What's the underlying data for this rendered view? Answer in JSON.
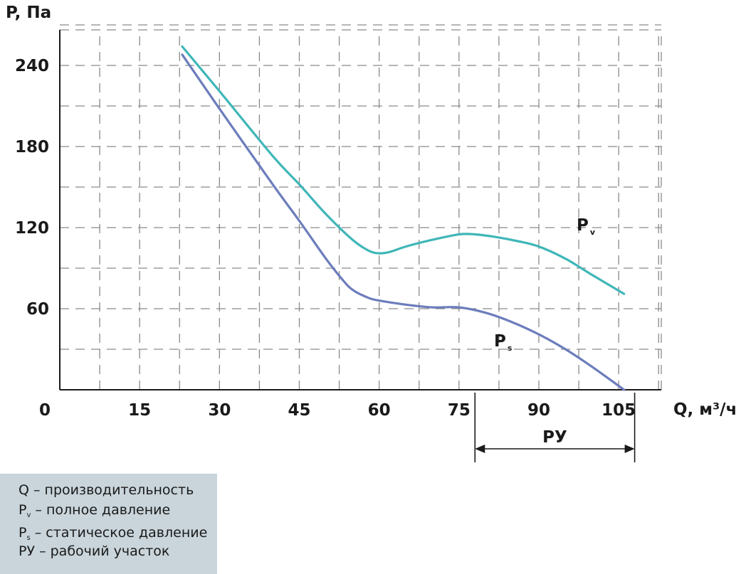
{
  "chart_data": {
    "type": "line",
    "ylabel": "P, Па",
    "xlabel": "Q, м³/ч",
    "origin_label": "0",
    "xticks": [
      15,
      30,
      45,
      60,
      75,
      90,
      105
    ],
    "yticks": [
      60,
      120,
      180,
      240
    ],
    "xlim": [
      0,
      113
    ],
    "ylim": [
      0,
      270
    ],
    "grid": true,
    "series": [
      {
        "name": "Pv",
        "label_main": "P",
        "label_sub": "v",
        "color": "#3fb6b8",
        "x": [
          23,
          30,
          40,
          45,
          50,
          55,
          58,
          60,
          62,
          65,
          70,
          75,
          78,
          82,
          86,
          90,
          95,
          100,
          106
        ],
        "y": [
          254,
          221,
          173,
          152,
          130,
          111,
          103,
          101,
          102,
          106,
          111,
          115,
          115,
          113,
          110,
          106,
          97,
          85,
          71
        ]
      },
      {
        "name": "Ps",
        "label_main": "P",
        "label_sub": "s",
        "color": "#6c7dbc",
        "x": [
          23,
          30,
          40,
          45,
          50,
          53,
          55,
          58,
          60,
          65,
          70,
          75,
          80,
          85,
          90,
          95,
          100,
          106
        ],
        "y": [
          248,
          208,
          152,
          125,
          97,
          82,
          74,
          68,
          66,
          63,
          61,
          61,
          57,
          50,
          41,
          30,
          17,
          0
        ]
      }
    ],
    "range": {
      "label": "РУ",
      "from": 78,
      "to": 108
    }
  },
  "legend": {
    "items": [
      {
        "main": "Q",
        "sub": "",
        "text": " – производительность"
      },
      {
        "main": "P",
        "sub": "v",
        "text": " – полное давление"
      },
      {
        "main": "P",
        "sub": "s",
        "text": " – статическое давление"
      },
      {
        "main": "РУ",
        "sub": "",
        "text": " – рабочий участок"
      }
    ]
  },
  "colors": {
    "grid": "#8a8a8a",
    "axis": "#1a1a1a",
    "legend_bg": "#c9d5db"
  }
}
